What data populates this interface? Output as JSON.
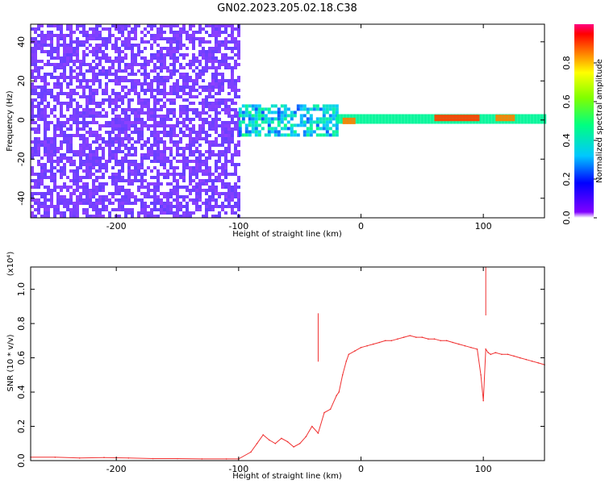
{
  "title": "GN02.2023.205.02.18.C38",
  "chart_data": [
    {
      "type": "heatmap",
      "xlabel": "Height of straight line (km)",
      "ylabel": "Frequency (Hz)",
      "xlim": [
        -270,
        150
      ],
      "ylim": [
        -50,
        49
      ],
      "x_ticks": [
        -200,
        -100,
        0,
        100
      ],
      "y_ticks": [
        -40,
        -20,
        0,
        20,
        40
      ],
      "colorbar": {
        "label": "Normalized spectral amplitude",
        "range": [
          0,
          1
        ],
        "ticks": [
          0.0,
          0.2,
          0.4,
          0.6,
          0.8
        ],
        "tick_labels": [
          "0.0",
          "0.2",
          "0.4",
          "0.6",
          "0.8"
        ],
        "colormap": "rainbow"
      },
      "regions": [
        {
          "x_range": [
            -270,
            -100
          ],
          "freq_range": [
            -50,
            49
          ],
          "amplitude": 0.05,
          "pattern": "broadband noise"
        },
        {
          "x_range": [
            -100,
            -20
          ],
          "freq_center": 0,
          "freq_halfwidth": 8,
          "amplitude": 0.3,
          "pattern": "scattered signal"
        },
        {
          "x_range": [
            -20,
            150
          ],
          "freq_center": 1,
          "freq_halfwidth": 2,
          "amplitude": 0.45,
          "pattern": "narrow carrier"
        },
        {
          "x_range": [
            -15,
            -5
          ],
          "freq_center": 0,
          "amplitude": 0.85
        },
        {
          "x_range": [
            60,
            95
          ],
          "freq_center": 1.5,
          "amplitude": 0.9
        },
        {
          "x_range": [
            110,
            125
          ],
          "freq_center": 1.5,
          "amplitude": 0.85
        }
      ]
    },
    {
      "type": "line",
      "xlabel": "Height of straight line (km)",
      "ylabel": "SNR (10 * v/v)",
      "y_multiplier": "(x10⁴)",
      "xlim": [
        -270,
        150
      ],
      "ylim": [
        0,
        1.13
      ],
      "x_ticks": [
        -200,
        -100,
        0,
        100
      ],
      "y_ticks": [
        0.0,
        0.2,
        0.4,
        0.6,
        0.8,
        1.0
      ],
      "y_tick_labels": [
        "0.0",
        "0.2",
        "0.4",
        "0.6",
        "0.8",
        "1.0"
      ],
      "color": "#f03030",
      "series": [
        {
          "x": [
            -270,
            -250,
            -230,
            -210,
            -190,
            -170,
            -150,
            -130,
            -110,
            -100,
            -90,
            -85,
            -80,
            -75,
            -70,
            -65,
            -60,
            -55,
            -50,
            -45,
            -40,
            -35,
            -30,
            -25,
            -20,
            -18,
            -15,
            -12,
            -10,
            -5,
            0,
            5,
            10,
            15,
            20,
            25,
            30,
            35,
            40,
            45,
            50,
            55,
            60,
            65,
            70,
            75,
            80,
            85,
            90,
            95,
            98,
            100,
            102,
            104,
            106,
            110,
            115,
            120,
            125,
            130,
            135,
            140,
            145,
            150
          ],
          "y": [
            0.02,
            0.02,
            0.015,
            0.018,
            0.015,
            0.012,
            0.012,
            0.01,
            0.01,
            0.01,
            0.05,
            0.1,
            0.15,
            0.12,
            0.1,
            0.13,
            0.11,
            0.08,
            0.1,
            0.14,
            0.2,
            0.16,
            0.28,
            0.3,
            0.38,
            0.4,
            0.5,
            0.58,
            0.62,
            0.64,
            0.66,
            0.67,
            0.68,
            0.69,
            0.7,
            0.7,
            0.71,
            0.72,
            0.73,
            0.72,
            0.72,
            0.71,
            0.71,
            0.7,
            0.7,
            0.69,
            0.68,
            0.67,
            0.66,
            0.65,
            0.5,
            0.35,
            0.65,
            0.63,
            0.62,
            0.63,
            0.62,
            0.62,
            0.61,
            0.6,
            0.59,
            0.58,
            0.57,
            0.56
          ]
        }
      ],
      "annotations": [
        {
          "x": -35,
          "y": 0.86,
          "text": ""
        },
        {
          "x": 102,
          "y": 1.13,
          "text": ""
        }
      ]
    }
  ]
}
